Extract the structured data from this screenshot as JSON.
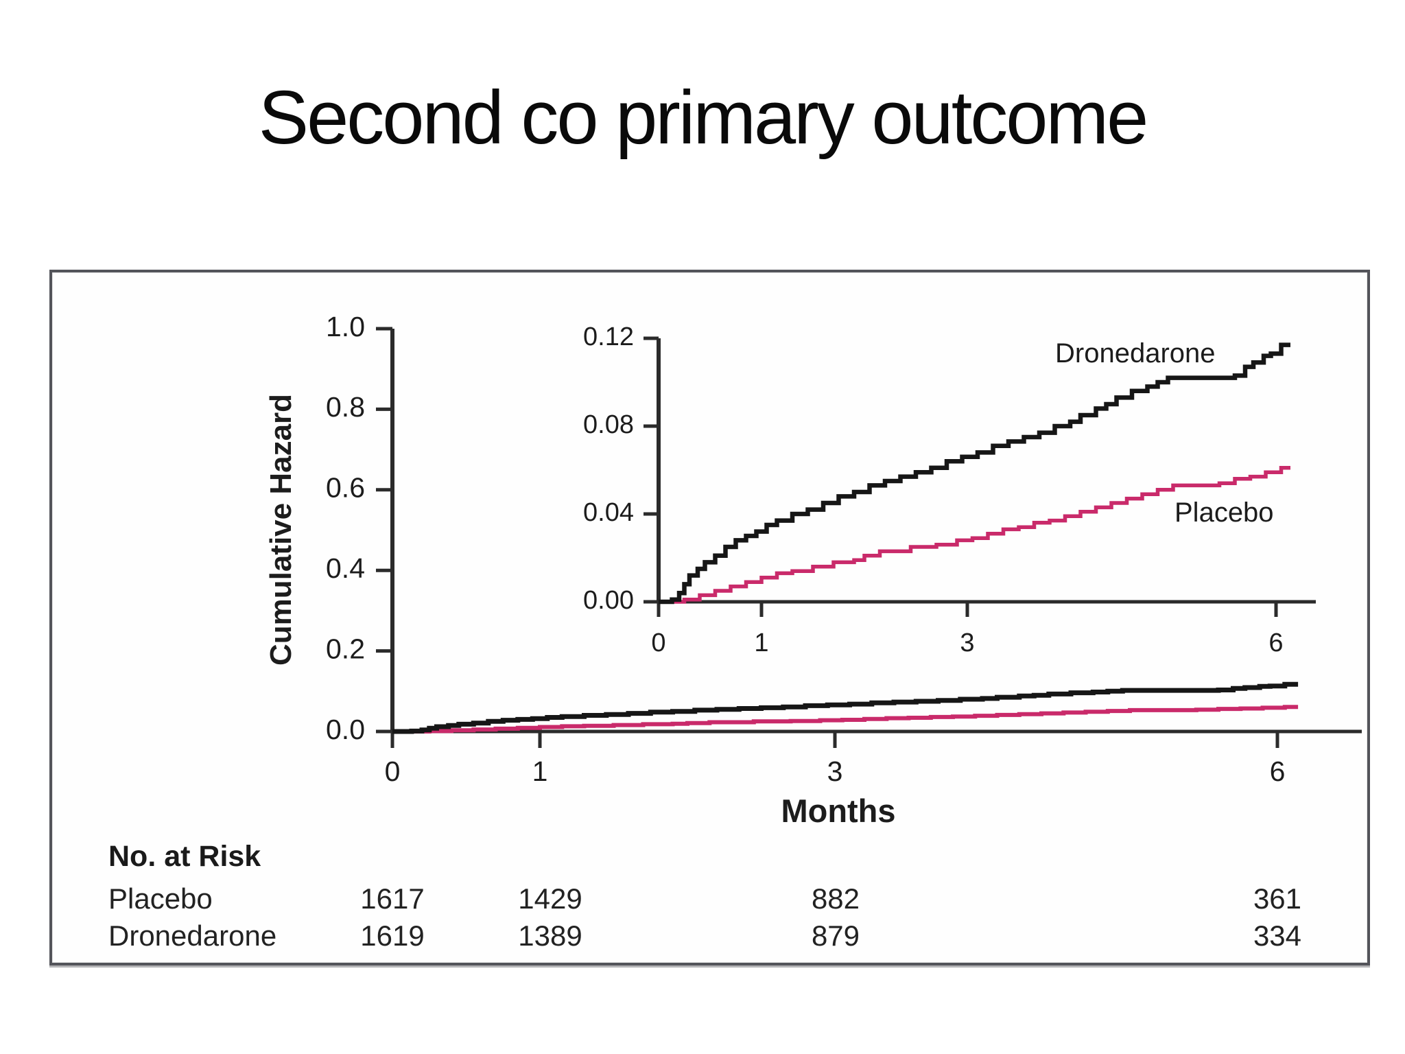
{
  "slide": {
    "title": "Second co primary outcome"
  },
  "figure": {
    "risk_table": {
      "header": "No. at Risk",
      "rows": [
        {
          "label": "Placebo",
          "values": [
            "1617",
            "1429",
            "882",
            "361"
          ]
        },
        {
          "label": "Dronedarone",
          "values": [
            "1619",
            "1389",
            "879",
            "334"
          ]
        }
      ]
    }
  },
  "colors": {
    "dronedarone": "#161616",
    "placebo": "#c92a6a",
    "axis": "#2b2b2b",
    "frame": "#53545a"
  },
  "chart_data": [
    {
      "type": "line",
      "style": "step-after",
      "title": "",
      "xlabel": "Months",
      "ylabel": "Cumulative Hazard",
      "xlim": [
        0,
        6.6
      ],
      "ylim": [
        0,
        1.0
      ],
      "xticks": {
        "values": [
          0,
          1,
          3,
          6
        ],
        "labels": [
          "0",
          "1",
          "3",
          "6"
        ]
      },
      "yticks": {
        "values": [
          0,
          0.2,
          0.4,
          0.6,
          0.8,
          1.0
        ],
        "labels": [
          "0.0",
          "0.2",
          "0.4",
          "0.6",
          "0.8",
          "1.0"
        ]
      },
      "grid": false,
      "legend_position": "none",
      "series": [
        {
          "name": "Dronedarone",
          "color": "#161616",
          "x": [
            0,
            0.13,
            0.2,
            0.25,
            0.3,
            0.38,
            0.45,
            0.55,
            0.65,
            0.75,
            0.85,
            0.95,
            1.05,
            1.15,
            1.3,
            1.45,
            1.6,
            1.75,
            1.9,
            2.05,
            2.2,
            2.35,
            2.5,
            2.65,
            2.8,
            2.95,
            3.1,
            3.25,
            3.4,
            3.55,
            3.7,
            3.85,
            4.0,
            4.1,
            4.25,
            4.35,
            4.45,
            4.6,
            4.75,
            4.85,
            4.95,
            5.6,
            5.7,
            5.78,
            5.88,
            5.95,
            6.05
          ],
          "y": [
            0,
            0.001,
            0.004,
            0.008,
            0.012,
            0.015,
            0.018,
            0.021,
            0.025,
            0.028,
            0.03,
            0.032,
            0.035,
            0.037,
            0.04,
            0.042,
            0.045,
            0.048,
            0.05,
            0.053,
            0.055,
            0.057,
            0.059,
            0.061,
            0.064,
            0.066,
            0.068,
            0.071,
            0.073,
            0.075,
            0.077,
            0.08,
            0.082,
            0.085,
            0.088,
            0.09,
            0.093,
            0.096,
            0.098,
            0.1,
            0.102,
            0.103,
            0.107,
            0.109,
            0.112,
            0.113,
            0.117
          ]
        },
        {
          "name": "Placebo",
          "color": "#c92a6a",
          "x": [
            0,
            0.25,
            0.4,
            0.55,
            0.7,
            0.85,
            1.0,
            1.15,
            1.3,
            1.5,
            1.7,
            1.9,
            2.0,
            2.15,
            2.45,
            2.7,
            2.9,
            3.05,
            3.2,
            3.35,
            3.5,
            3.65,
            3.8,
            3.95,
            4.1,
            4.25,
            4.4,
            4.55,
            4.7,
            4.85,
            5.0,
            5.45,
            5.6,
            5.75,
            5.9,
            6.05
          ],
          "y": [
            0,
            0.001,
            0.003,
            0.005,
            0.007,
            0.009,
            0.011,
            0.013,
            0.014,
            0.016,
            0.018,
            0.019,
            0.021,
            0.023,
            0.025,
            0.026,
            0.028,
            0.029,
            0.031,
            0.033,
            0.034,
            0.036,
            0.037,
            0.039,
            0.041,
            0.043,
            0.045,
            0.047,
            0.049,
            0.051,
            0.053,
            0.054,
            0.056,
            0.057,
            0.059,
            0.061
          ]
        }
      ]
    },
    {
      "type": "line",
      "style": "step-after",
      "title": "",
      "xlabel": "",
      "ylabel": "",
      "note": "inset magnification of main chart",
      "xlim": [
        0,
        6.5
      ],
      "ylim": [
        0,
        0.12
      ],
      "xticks": {
        "values": [
          0,
          1,
          3,
          6
        ],
        "labels": [
          "0",
          "1",
          "3",
          "6"
        ]
      },
      "yticks": {
        "values": [
          0,
          0.04,
          0.08,
          0.12
        ],
        "labels": [
          "0.00",
          "0.04",
          "0.08",
          "0.12"
        ]
      },
      "grid": false,
      "legend_position": "inline-annotations",
      "annotations": [
        {
          "text": "Dronedarone",
          "x": 4.7,
          "y": 0.114
        },
        {
          "text": "Placebo",
          "x": 5.5,
          "y": 0.041
        }
      ],
      "series": [
        {
          "name": "Dronedarone",
          "color": "#161616",
          "x": [
            0,
            0.13,
            0.2,
            0.25,
            0.3,
            0.38,
            0.45,
            0.55,
            0.65,
            0.75,
            0.85,
            0.95,
            1.05,
            1.15,
            1.3,
            1.45,
            1.6,
            1.75,
            1.9,
            2.05,
            2.2,
            2.35,
            2.5,
            2.65,
            2.8,
            2.95,
            3.1,
            3.25,
            3.4,
            3.55,
            3.7,
            3.85,
            4.0,
            4.1,
            4.25,
            4.35,
            4.45,
            4.6,
            4.75,
            4.85,
            4.95,
            5.6,
            5.7,
            5.78,
            5.88,
            5.95,
            6.05
          ],
          "y": [
            0,
            0.001,
            0.004,
            0.008,
            0.012,
            0.015,
            0.018,
            0.021,
            0.025,
            0.028,
            0.03,
            0.032,
            0.035,
            0.037,
            0.04,
            0.042,
            0.045,
            0.048,
            0.05,
            0.053,
            0.055,
            0.057,
            0.059,
            0.061,
            0.064,
            0.066,
            0.068,
            0.071,
            0.073,
            0.075,
            0.077,
            0.08,
            0.082,
            0.085,
            0.088,
            0.09,
            0.093,
            0.096,
            0.098,
            0.1,
            0.102,
            0.103,
            0.107,
            0.109,
            0.112,
            0.113,
            0.117
          ]
        },
        {
          "name": "Placebo",
          "color": "#c92a6a",
          "x": [
            0,
            0.25,
            0.4,
            0.55,
            0.7,
            0.85,
            1.0,
            1.15,
            1.3,
            1.5,
            1.7,
            1.9,
            2.0,
            2.15,
            2.45,
            2.7,
            2.9,
            3.05,
            3.2,
            3.35,
            3.5,
            3.65,
            3.8,
            3.95,
            4.1,
            4.25,
            4.4,
            4.55,
            4.7,
            4.85,
            5.0,
            5.45,
            5.6,
            5.75,
            5.9,
            6.05
          ],
          "y": [
            0,
            0.001,
            0.003,
            0.005,
            0.007,
            0.009,
            0.011,
            0.013,
            0.014,
            0.016,
            0.018,
            0.019,
            0.021,
            0.023,
            0.025,
            0.026,
            0.028,
            0.029,
            0.031,
            0.033,
            0.034,
            0.036,
            0.037,
            0.039,
            0.041,
            0.043,
            0.045,
            0.047,
            0.049,
            0.051,
            0.053,
            0.054,
            0.056,
            0.057,
            0.059,
            0.061
          ]
        }
      ]
    }
  ]
}
